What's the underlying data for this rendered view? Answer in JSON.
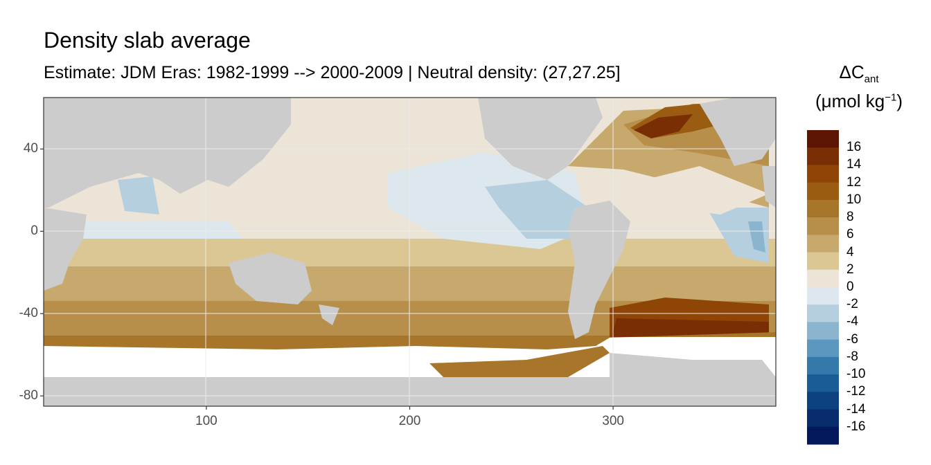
{
  "chart_data": {
    "type": "heatmap",
    "title": "Density slab average",
    "subtitle": "Estimate: JDM Eras: 1982-1999 --> 2000-2009 | Neutral density: (27,27.25]",
    "legend": {
      "title_main": "ΔC",
      "title_sub": "ant",
      "title_units_a": "(μmol kg",
      "title_units_sup": "−1",
      "title_units_b": ")",
      "placement": "right",
      "breaks": [
        16,
        14,
        12,
        10,
        8,
        6,
        4,
        2,
        0,
        -2,
        -4,
        -6,
        -8,
        -10,
        -12,
        -14,
        -16
      ],
      "colors": [
        "#5c1403",
        "#7a2e04",
        "#8e4506",
        "#9a5c10",
        "#a8762a",
        "#b88f4a",
        "#c8a96d",
        "#dac793",
        "#ece5d7",
        "#dce8ed",
        "#b6cfde",
        "#8bb5cf",
        "#5b97bf",
        "#3579aa",
        "#1a5c95",
        "#0d417f",
        "#082c6c",
        "#04195b"
      ]
    },
    "xaxis": {
      "ticks": [
        100,
        200,
        300
      ],
      "range": [
        20,
        380
      ]
    },
    "yaxis": {
      "ticks": [
        40,
        0,
        -40,
        -80
      ],
      "range": [
        -85,
        65
      ]
    },
    "grid": true
  }
}
